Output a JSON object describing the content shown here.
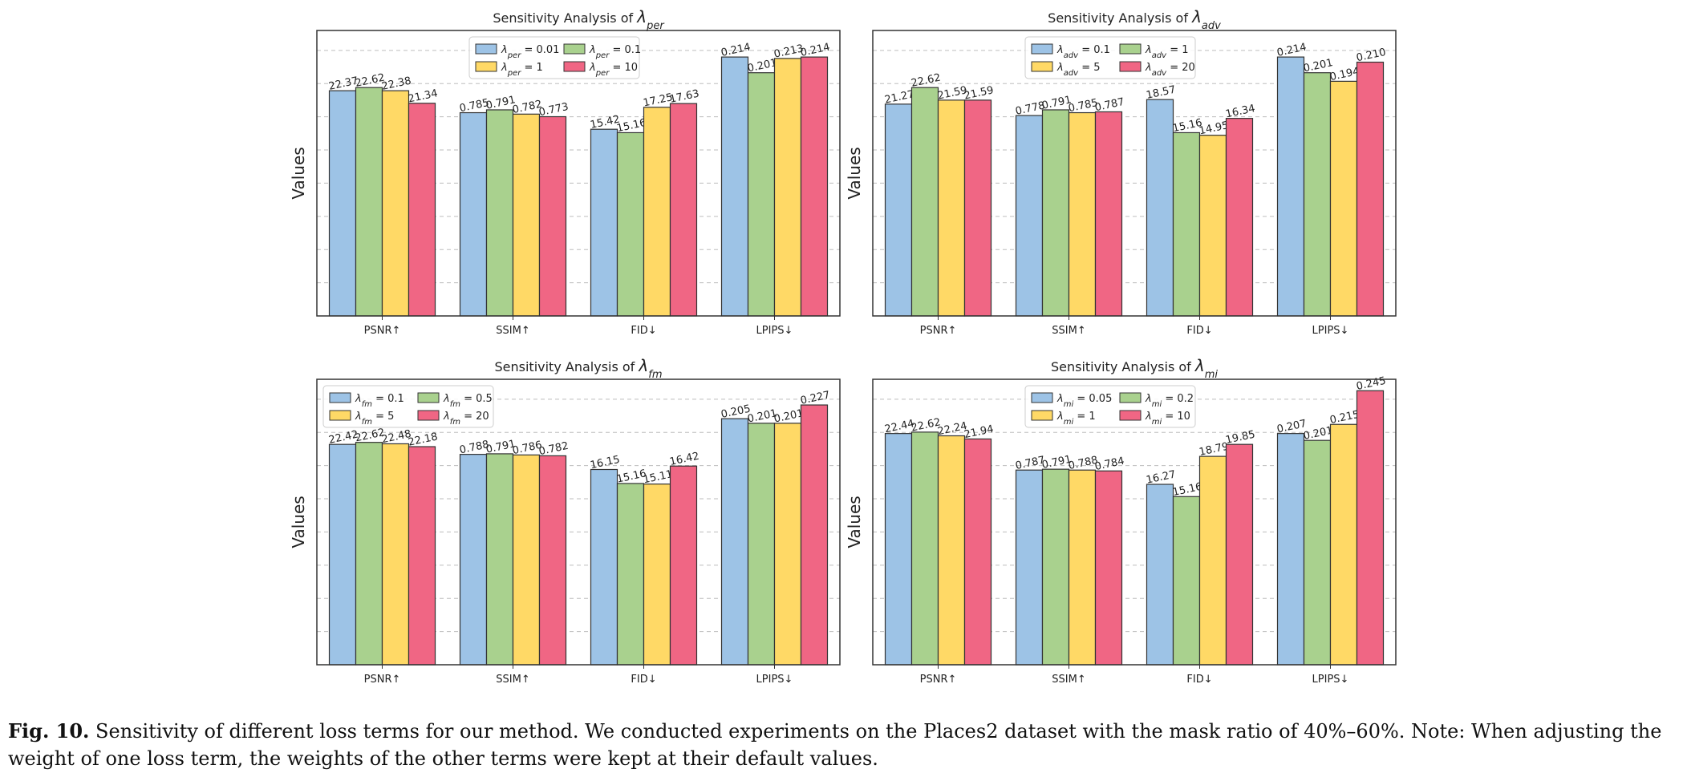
{
  "caption": {
    "label": "Fig. 10.",
    "text": "Sensitivity of different loss terms for our method. We conducted experiments on the Places2 dataset with the mask ratio of 40%–60%. Note: When adjusting the weight of one loss term, the weights of the other terms were kept at their default values."
  },
  "colors": [
    "#9dc3e6",
    "#a9d18e",
    "#ffd966",
    "#f06684"
  ],
  "chart_data": [
    {
      "type": "bar",
      "title_prefix": "Sensitivity Analysis of ",
      "title_symbol": "λ",
      "title_sub": "per",
      "ylabel": "Values",
      "categories": [
        "PSNR↑",
        "SSIM↑",
        "FID↓",
        "LPIPS↓"
      ],
      "legend": {
        "placement": "top-center",
        "ncol": 2
      },
      "grid": "y",
      "series": [
        {
          "symbol": "λ",
          "sub": "per",
          "rest": " = 0.01",
          "labels": [
            "22.37",
            "0.785",
            "15.42",
            "0.214"
          ],
          "heights": [
            0.789,
            0.712,
            0.654,
            0.907
          ]
        },
        {
          "symbol": "λ",
          "sub": "per",
          "rest": " = 0.1",
          "labels": [
            "22.62",
            "0.791",
            "15.16",
            "0.201"
          ],
          "heights": [
            0.8,
            0.722,
            0.642,
            0.852
          ]
        },
        {
          "symbol": "λ",
          "sub": "per",
          "rest": " = 1",
          "labels": [
            "22.38",
            "0.782",
            "17.25",
            "0.213"
          ],
          "heights": [
            0.789,
            0.707,
            0.731,
            0.902
          ]
        },
        {
          "symbol": "λ",
          "sub": "per",
          "rest": " = 10",
          "labels": [
            "21.34",
            "0.773",
            "17.63",
            "0.214"
          ],
          "heights": [
            0.745,
            0.698,
            0.744,
            0.907
          ]
        }
      ]
    },
    {
      "type": "bar",
      "title_prefix": "Sensitivity Analysis of ",
      "title_symbol": "λ",
      "title_sub": "adv",
      "ylabel": "Values",
      "categories": [
        "PSNR↑",
        "SSIM↑",
        "FID↓",
        "LPIPS↓"
      ],
      "legend": {
        "placement": "top-center",
        "ncol": 2
      },
      "grid": "y",
      "series": [
        {
          "symbol": "λ",
          "sub": "adv",
          "rest": " = 0.1",
          "labels": [
            "21.27",
            "0.778",
            "18.57",
            "0.214"
          ],
          "heights": [
            0.742,
            0.702,
            0.758,
            0.907
          ]
        },
        {
          "symbol": "λ",
          "sub": "adv",
          "rest": " = 1",
          "labels": [
            "22.62",
            "0.791",
            "15.16",
            "0.201"
          ],
          "heights": [
            0.8,
            0.722,
            0.642,
            0.852
          ]
        },
        {
          "symbol": "λ",
          "sub": "adv",
          "rest": " = 5",
          "labels": [
            "21.59",
            "0.785",
            "14.95",
            "0.194"
          ],
          "heights": [
            0.756,
            0.712,
            0.633,
            0.822
          ]
        },
        {
          "symbol": "λ",
          "sub": "adv",
          "rest": " = 20",
          "labels": [
            "21.59",
            "0.787",
            "16.34",
            "0.210"
          ],
          "heights": [
            0.756,
            0.715,
            0.692,
            0.889
          ]
        }
      ]
    },
    {
      "type": "bar",
      "title_prefix": "Sensitivity Analysis of ",
      "title_symbol": "λ",
      "title_sub": "fm",
      "ylabel": "Values",
      "categories": [
        "PSNR↑",
        "SSIM↑",
        "FID↓",
        "LPIPS↓"
      ],
      "legend": {
        "placement": "top-left",
        "ncol": 2
      },
      "grid": "y",
      "series": [
        {
          "symbol": "λ",
          "sub": "fm",
          "rest": " = 0.1",
          "labels": [
            "22.42",
            "0.788",
            "16.15",
            "0.205"
          ],
          "heights": [
            0.772,
            0.737,
            0.684,
            0.862
          ]
        },
        {
          "symbol": "λ",
          "sub": "fm",
          "rest": " = 0.5",
          "labels": [
            "22.62",
            "0.791",
            "15.16",
            "0.201"
          ],
          "heights": [
            0.779,
            0.739,
            0.635,
            0.846
          ]
        },
        {
          "symbol": "λ",
          "sub": "fm",
          "rest": " = 5",
          "labels": [
            "22.48",
            "0.786",
            "15.11",
            "0.201"
          ],
          "heights": [
            0.774,
            0.735,
            0.633,
            0.846
          ]
        },
        {
          "symbol": "λ",
          "sub": "fm",
          "rest": " = 20",
          "labels": [
            "22.18",
            "0.782",
            "16.42",
            "0.227"
          ],
          "heights": [
            0.764,
            0.732,
            0.696,
            0.91
          ]
        }
      ]
    },
    {
      "type": "bar",
      "title_prefix": "Sensitivity Analysis of ",
      "title_symbol": "λ",
      "title_sub": "mi",
      "ylabel": "Values",
      "categories": [
        "PSNR↑",
        "SSIM↑",
        "FID↓",
        "LPIPS↓"
      ],
      "legend": {
        "placement": "top-center",
        "ncol": 2
      },
      "grid": "y",
      "series": [
        {
          "symbol": "λ",
          "sub": "mi",
          "rest": " = 0.05",
          "labels": [
            "22.44",
            "0.787",
            "16.27",
            "0.207"
          ],
          "heights": [
            0.81,
            0.682,
            0.632,
            0.81
          ]
        },
        {
          "symbol": "λ",
          "sub": "mi",
          "rest": " = 0.2",
          "labels": [
            "22.62",
            "0.791",
            "15.16",
            "0.201"
          ],
          "heights": [
            0.815,
            0.685,
            0.589,
            0.786
          ]
        },
        {
          "symbol": "λ",
          "sub": "mi",
          "rest": " = 1",
          "labels": [
            "22.24",
            "0.788",
            "18.79",
            "0.215"
          ],
          "heights": [
            0.802,
            0.682,
            0.73,
            0.842
          ]
        },
        {
          "symbol": "λ",
          "sub": "mi",
          "rest": " = 10",
          "labels": [
            "21.94",
            "0.784",
            "19.85",
            "0.245"
          ],
          "heights": [
            0.791,
            0.679,
            0.772,
            0.96
          ]
        }
      ]
    }
  ]
}
